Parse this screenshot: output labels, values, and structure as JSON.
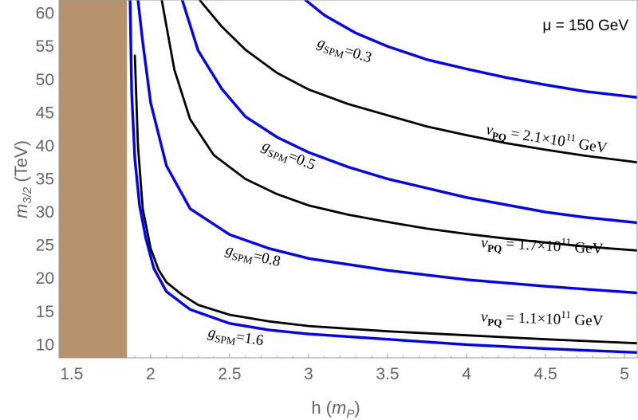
{
  "chart_data": {
    "type": "line",
    "title": "",
    "corner_label": "μ = 150 GeV",
    "xlabel": "h (m_P)",
    "ylabel": "m_{3/2} (TeV)",
    "xlim": [
      1.42,
      5.08
    ],
    "ylim": [
      8,
      62
    ],
    "x_ticks": [
      1.5,
      2,
      2.5,
      3,
      3.5,
      4,
      4.5,
      5
    ],
    "x_tick_labels": [
      "1.5",
      "2",
      "2.5",
      "3",
      "3.5",
      "4",
      "4.5",
      "5"
    ],
    "y_ticks": [
      10,
      15,
      20,
      25,
      30,
      35,
      40,
      45,
      50,
      55,
      60
    ],
    "y_tick_labels": [
      "10",
      "15",
      "20",
      "25",
      "30",
      "35",
      "40",
      "45",
      "50",
      "55",
      "60"
    ],
    "excluded_region": {
      "x_range": [
        1.42,
        1.85
      ],
      "color": "#b5916c"
    },
    "series": [
      {
        "name": "g_SPM=0.3",
        "color": "#0000ff",
        "points": [
          [
            2.98,
            62
          ],
          [
            3.1,
            59.7
          ],
          [
            3.3,
            57.0
          ],
          [
            3.5,
            55.0
          ],
          [
            3.75,
            53.0
          ],
          [
            4.0,
            51.6
          ],
          [
            4.25,
            50.3
          ],
          [
            4.5,
            49.2
          ],
          [
            4.75,
            48.2
          ],
          [
            5.08,
            47.3
          ]
        ]
      },
      {
        "name": "g_SPM=0.5",
        "color": "#0000ff",
        "points": [
          [
            2.2,
            62
          ],
          [
            2.3,
            54.4
          ],
          [
            2.45,
            48.6
          ],
          [
            2.6,
            44.4
          ],
          [
            2.8,
            41.3
          ],
          [
            3.0,
            39.0
          ],
          [
            3.25,
            36.8
          ],
          [
            3.5,
            35.0
          ],
          [
            3.75,
            33.6
          ],
          [
            4.0,
            32.2
          ],
          [
            4.25,
            31.1
          ],
          [
            4.5,
            30.0
          ],
          [
            4.75,
            29.2
          ],
          [
            5.08,
            28.4
          ]
        ]
      },
      {
        "name": "g_SPM=0.8",
        "color": "#0000ff",
        "points": [
          [
            1.92,
            62
          ],
          [
            1.95,
            55.6
          ],
          [
            2.0,
            46.5
          ],
          [
            2.1,
            37.0
          ],
          [
            2.25,
            30.5
          ],
          [
            2.5,
            26.6
          ],
          [
            2.75,
            24.5
          ],
          [
            3.0,
            23.0
          ],
          [
            3.5,
            21.2
          ],
          [
            4.0,
            19.8
          ],
          [
            4.5,
            18.8
          ],
          [
            5.08,
            17.8
          ]
        ]
      },
      {
        "name": "g_SPM=1.6",
        "color": "#0000ff",
        "points": [
          [
            1.87,
            62
          ],
          [
            1.88,
            48
          ],
          [
            1.9,
            38
          ],
          [
            1.93,
            31
          ],
          [
            1.97,
            26
          ],
          [
            2.02,
            21.5
          ],
          [
            2.1,
            18.0
          ],
          [
            2.25,
            15.3
          ],
          [
            2.5,
            13.2
          ],
          [
            2.75,
            12.2
          ],
          [
            3.0,
            11.6
          ],
          [
            3.5,
            10.8
          ],
          [
            4.0,
            10.0
          ],
          [
            4.5,
            9.4
          ],
          [
            5.08,
            8.8
          ]
        ]
      },
      {
        "name": "v_PQ = 2.1×10^11 GeV",
        "color": "#000000",
        "points": [
          [
            2.31,
            62
          ],
          [
            2.45,
            58.0
          ],
          [
            2.6,
            54.5
          ],
          [
            2.8,
            51.0
          ],
          [
            3.0,
            48.5
          ],
          [
            3.25,
            46.3
          ],
          [
            3.5,
            44.6
          ],
          [
            3.75,
            42.9
          ],
          [
            4.0,
            41.6
          ],
          [
            4.25,
            40.4
          ],
          [
            4.5,
            39.4
          ],
          [
            4.75,
            38.5
          ],
          [
            5.08,
            37.5
          ]
        ]
      },
      {
        "name": "v_PQ = 1.7×10^11 GeV",
        "color": "#000000",
        "points": [
          [
            2.07,
            62
          ],
          [
            2.15,
            51.5
          ],
          [
            2.25,
            44.0
          ],
          [
            2.4,
            38.6
          ],
          [
            2.6,
            35.0
          ],
          [
            2.8,
            32.7
          ],
          [
            3.0,
            31.0
          ],
          [
            3.25,
            29.6
          ],
          [
            3.5,
            28.5
          ],
          [
            3.75,
            27.5
          ],
          [
            4.0,
            26.7
          ],
          [
            4.25,
            26.0
          ],
          [
            4.5,
            25.4
          ],
          [
            4.75,
            24.8
          ],
          [
            5.08,
            24.2
          ]
        ]
      },
      {
        "name": "v_PQ = 1.1×10^11 GeV",
        "color": "#000000",
        "points": [
          [
            1.9,
            53.6
          ],
          [
            1.92,
            40
          ],
          [
            1.95,
            30.5
          ],
          [
            2.0,
            24.5
          ],
          [
            2.05,
            21.3
          ],
          [
            2.1,
            19.4
          ],
          [
            2.2,
            17.5
          ],
          [
            2.3,
            16.0
          ],
          [
            2.5,
            14.5
          ],
          [
            2.75,
            13.5
          ],
          [
            3.0,
            12.8
          ],
          [
            3.5,
            12.0
          ],
          [
            4.0,
            11.4
          ],
          [
            4.5,
            10.8
          ],
          [
            5.08,
            10.2
          ]
        ]
      }
    ],
    "annotations": [
      {
        "sym": "g",
        "sub": "SPM",
        "rest": "=0.3",
        "x": 3.05,
        "y": 55.0,
        "angle": 17
      },
      {
        "sym": "g",
        "sub": "SPM",
        "rest": "=0.5",
        "x": 2.7,
        "y": 39.5,
        "angle": 22
      },
      {
        "sym": "g",
        "sub": "SPM",
        "rest": "=0.8",
        "x": 2.47,
        "y": 23.7,
        "angle": 13
      },
      {
        "sym": "g",
        "sub": "SPM",
        "rest": "=1.6",
        "x": 2.36,
        "y": 11.2,
        "angle": 9
      },
      {
        "sym": "v",
        "sub": "PQ",
        "rest": " = 2.1×10",
        "sup": "11",
        "unit": " GeV",
        "x": 4.12,
        "y": 41.8,
        "angle": 9
      },
      {
        "sym": "v",
        "sub": "PQ",
        "rest": " = 1.7×10",
        "sup": "11",
        "unit": " GeV",
        "x": 4.09,
        "y": 24.7,
        "angle": 3
      },
      {
        "sym": "v",
        "sub": "PQ",
        "rest": " = 1.1×10",
        "sup": "11",
        "unit": " GeV",
        "x": 4.09,
        "y": 13.5,
        "angle": 2
      }
    ]
  }
}
